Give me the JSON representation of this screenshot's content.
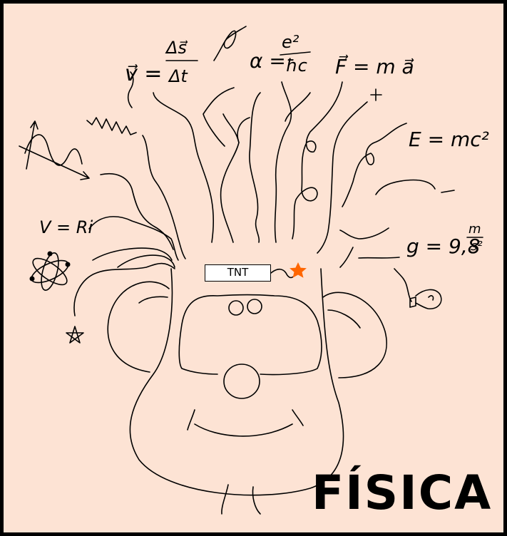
{
  "title": "FÍSICA",
  "label": "TNT",
  "formulas": {
    "velocity_lhs": "v⃗ =",
    "velocity_num": "Δs⃗",
    "velocity_den": "Δt",
    "alpha_lhs": "α =",
    "alpha_num": "e²",
    "alpha_den": "ħc",
    "force": "F⃗ = m a⃗",
    "energy": "E = mc²",
    "gravity": "g = 9,8",
    "gravity_unit_num": "m",
    "gravity_unit_den": "s²",
    "ohm": "V = Ri"
  },
  "colors": {
    "background": "#fde3d4",
    "star": "#ff6600",
    "ink": "#000000"
  }
}
